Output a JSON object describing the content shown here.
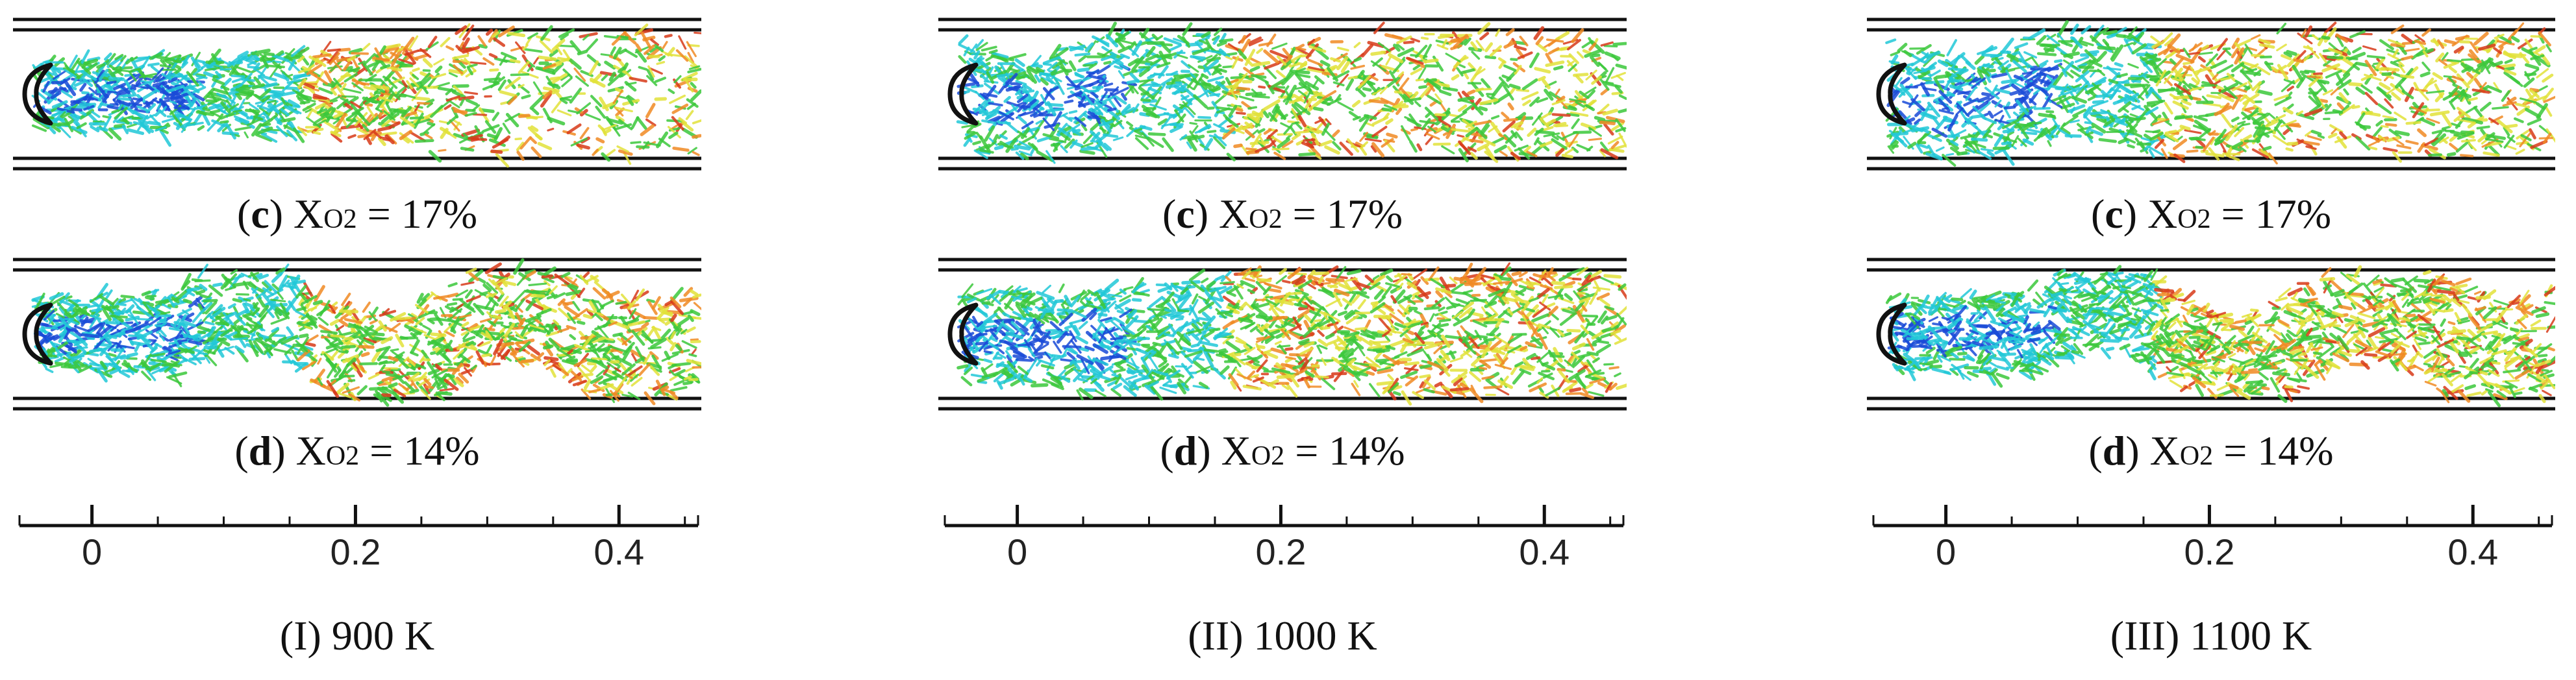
{
  "figure": {
    "columns": [
      {
        "title": "(I) 900 K",
        "panels": [
          {
            "letter": "c",
            "var": "X",
            "sub": "O2",
            "value": "= 17%",
            "wake": "narrow"
          },
          {
            "letter": "d",
            "var": "X",
            "sub": "O2",
            "value": "= 14%",
            "wake": "wavy"
          }
        ]
      },
      {
        "title": "(II) 1000 K",
        "panels": [
          {
            "letter": "c",
            "var": "X",
            "sub": "O2",
            "value": "= 17%",
            "wake": "vortex"
          },
          {
            "letter": "d",
            "var": "X",
            "sub": "O2",
            "value": "= 14%",
            "wake": "broad"
          }
        ]
      },
      {
        "title": "(III) 1100 K",
        "panels": [
          {
            "letter": "c",
            "var": "X",
            "sub": "O2",
            "value": "= 17%",
            "wake": "vortex"
          },
          {
            "letter": "d",
            "var": "X",
            "sub": "O2",
            "value": "= 14%",
            "wake": "wavy"
          }
        ]
      }
    ],
    "axis": {
      "ticks": [
        "0",
        "0.2",
        "0.4"
      ],
      "tick_values": [
        0,
        0.2,
        0.4
      ],
      "range": [
        -0.055,
        0.46
      ],
      "minor_step": 0.05
    },
    "colors": {
      "core": "#1a4bd8",
      "cyan": "#22c8d8",
      "green": "#3cc83c",
      "yellow": "#e2e23a",
      "orange": "#f08a24",
      "red": "#d83a1a",
      "wall": "#111111"
    }
  }
}
